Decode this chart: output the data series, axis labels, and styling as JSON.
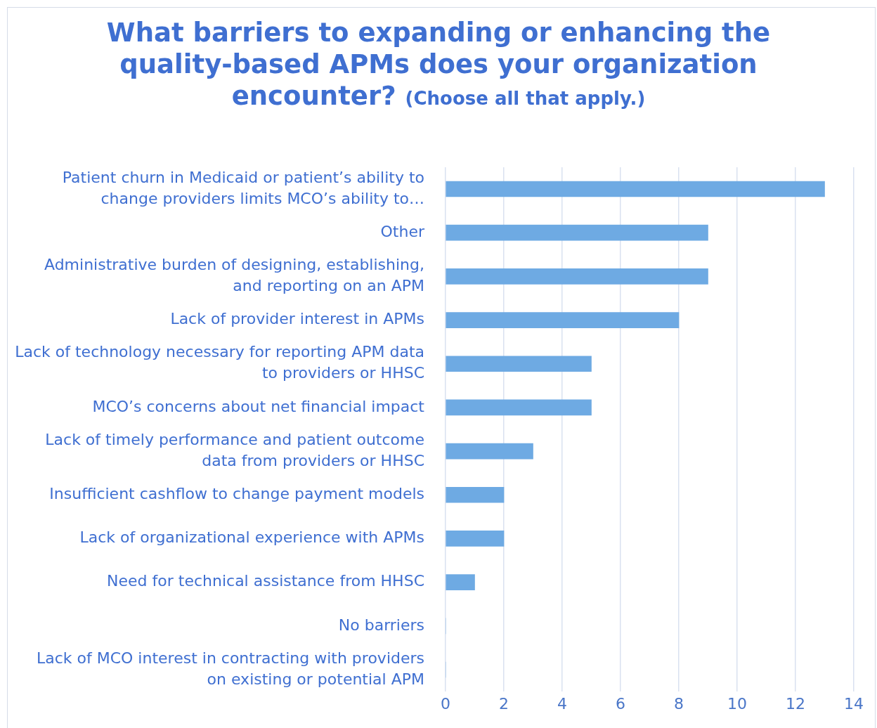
{
  "chart_data": {
    "type": "bar",
    "orientation": "horizontal",
    "title": "What barriers to expanding or enhancing the quality-based APMs does your organization encounter?",
    "subtitle": "(Choose all that apply.)",
    "categories": [
      "Patient churn in Medicaid or patient’s ability to change providers limits MCO’s ability to…",
      "Other",
      "Administrative burden of designing, establishing, and reporting on an APM",
      "Lack of provider interest in APMs",
      "Lack of technology necessary for reporting APM data to providers or HHSC",
      "MCO’s concerns about net financial impact",
      "Lack of timely performance and patient outcome data from providers or HHSC",
      "Insufficient cashflow to change payment models",
      "Lack of organizational experience with APMs",
      "Need for technical assistance from HHSC",
      "No barriers",
      "Lack of MCO interest in contracting with providers on existing or potential APM"
    ],
    "values": [
      13,
      9,
      9,
      8,
      5,
      5,
      3,
      2,
      2,
      1,
      0,
      0
    ],
    "color": "#6eaae3",
    "xlim": [
      0,
      14
    ],
    "xticks": [
      0,
      2,
      4,
      6,
      8,
      10,
      12,
      14
    ],
    "grid": "x",
    "legend": false
  }
}
